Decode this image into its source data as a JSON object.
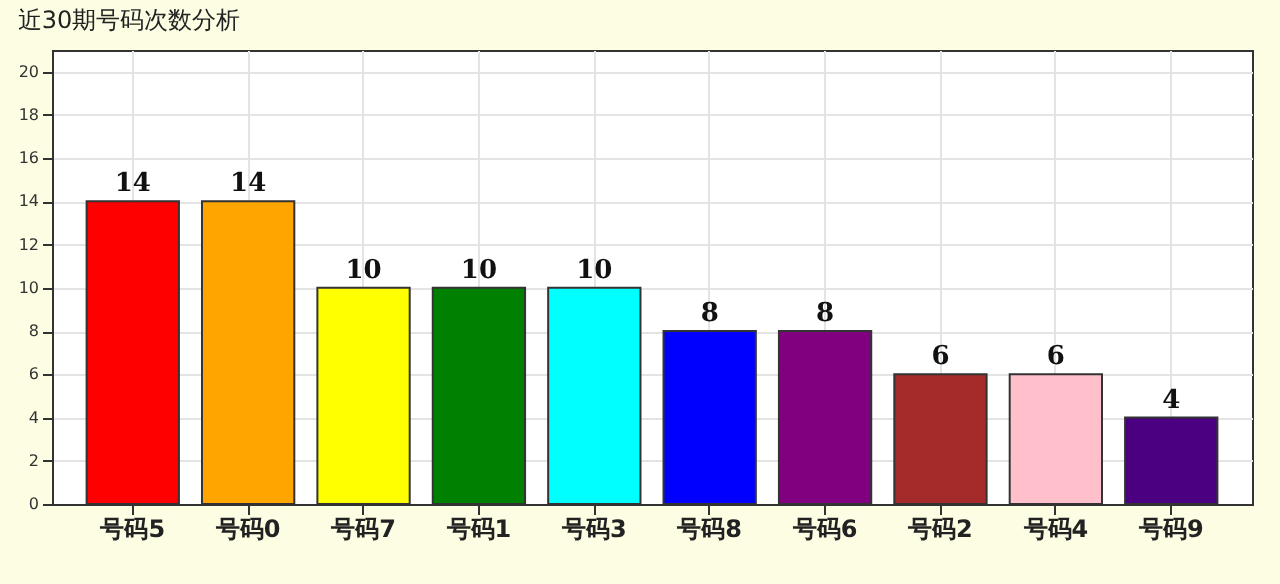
{
  "chart_data": {
    "type": "bar",
    "title": "近30期号码次数分析",
    "categories": [
      "号码5",
      "号码0",
      "号码7",
      "号码1",
      "号码3",
      "号码8",
      "号码6",
      "号码2",
      "号码4",
      "号码9"
    ],
    "values": [
      14,
      14,
      10,
      10,
      10,
      8,
      8,
      6,
      6,
      4
    ],
    "colors": [
      "#ff0000",
      "#ffa500",
      "#ffff00",
      "#008000",
      "#00ffff",
      "#0000ff",
      "#800080",
      "#a52a2a",
      "#ffc0cb",
      "#4b0082"
    ],
    "ylim": [
      0,
      21
    ],
    "yticks": [
      0,
      2,
      4,
      6,
      8,
      10,
      12,
      14,
      16,
      18,
      20
    ],
    "grid": true,
    "data_labels": true
  }
}
